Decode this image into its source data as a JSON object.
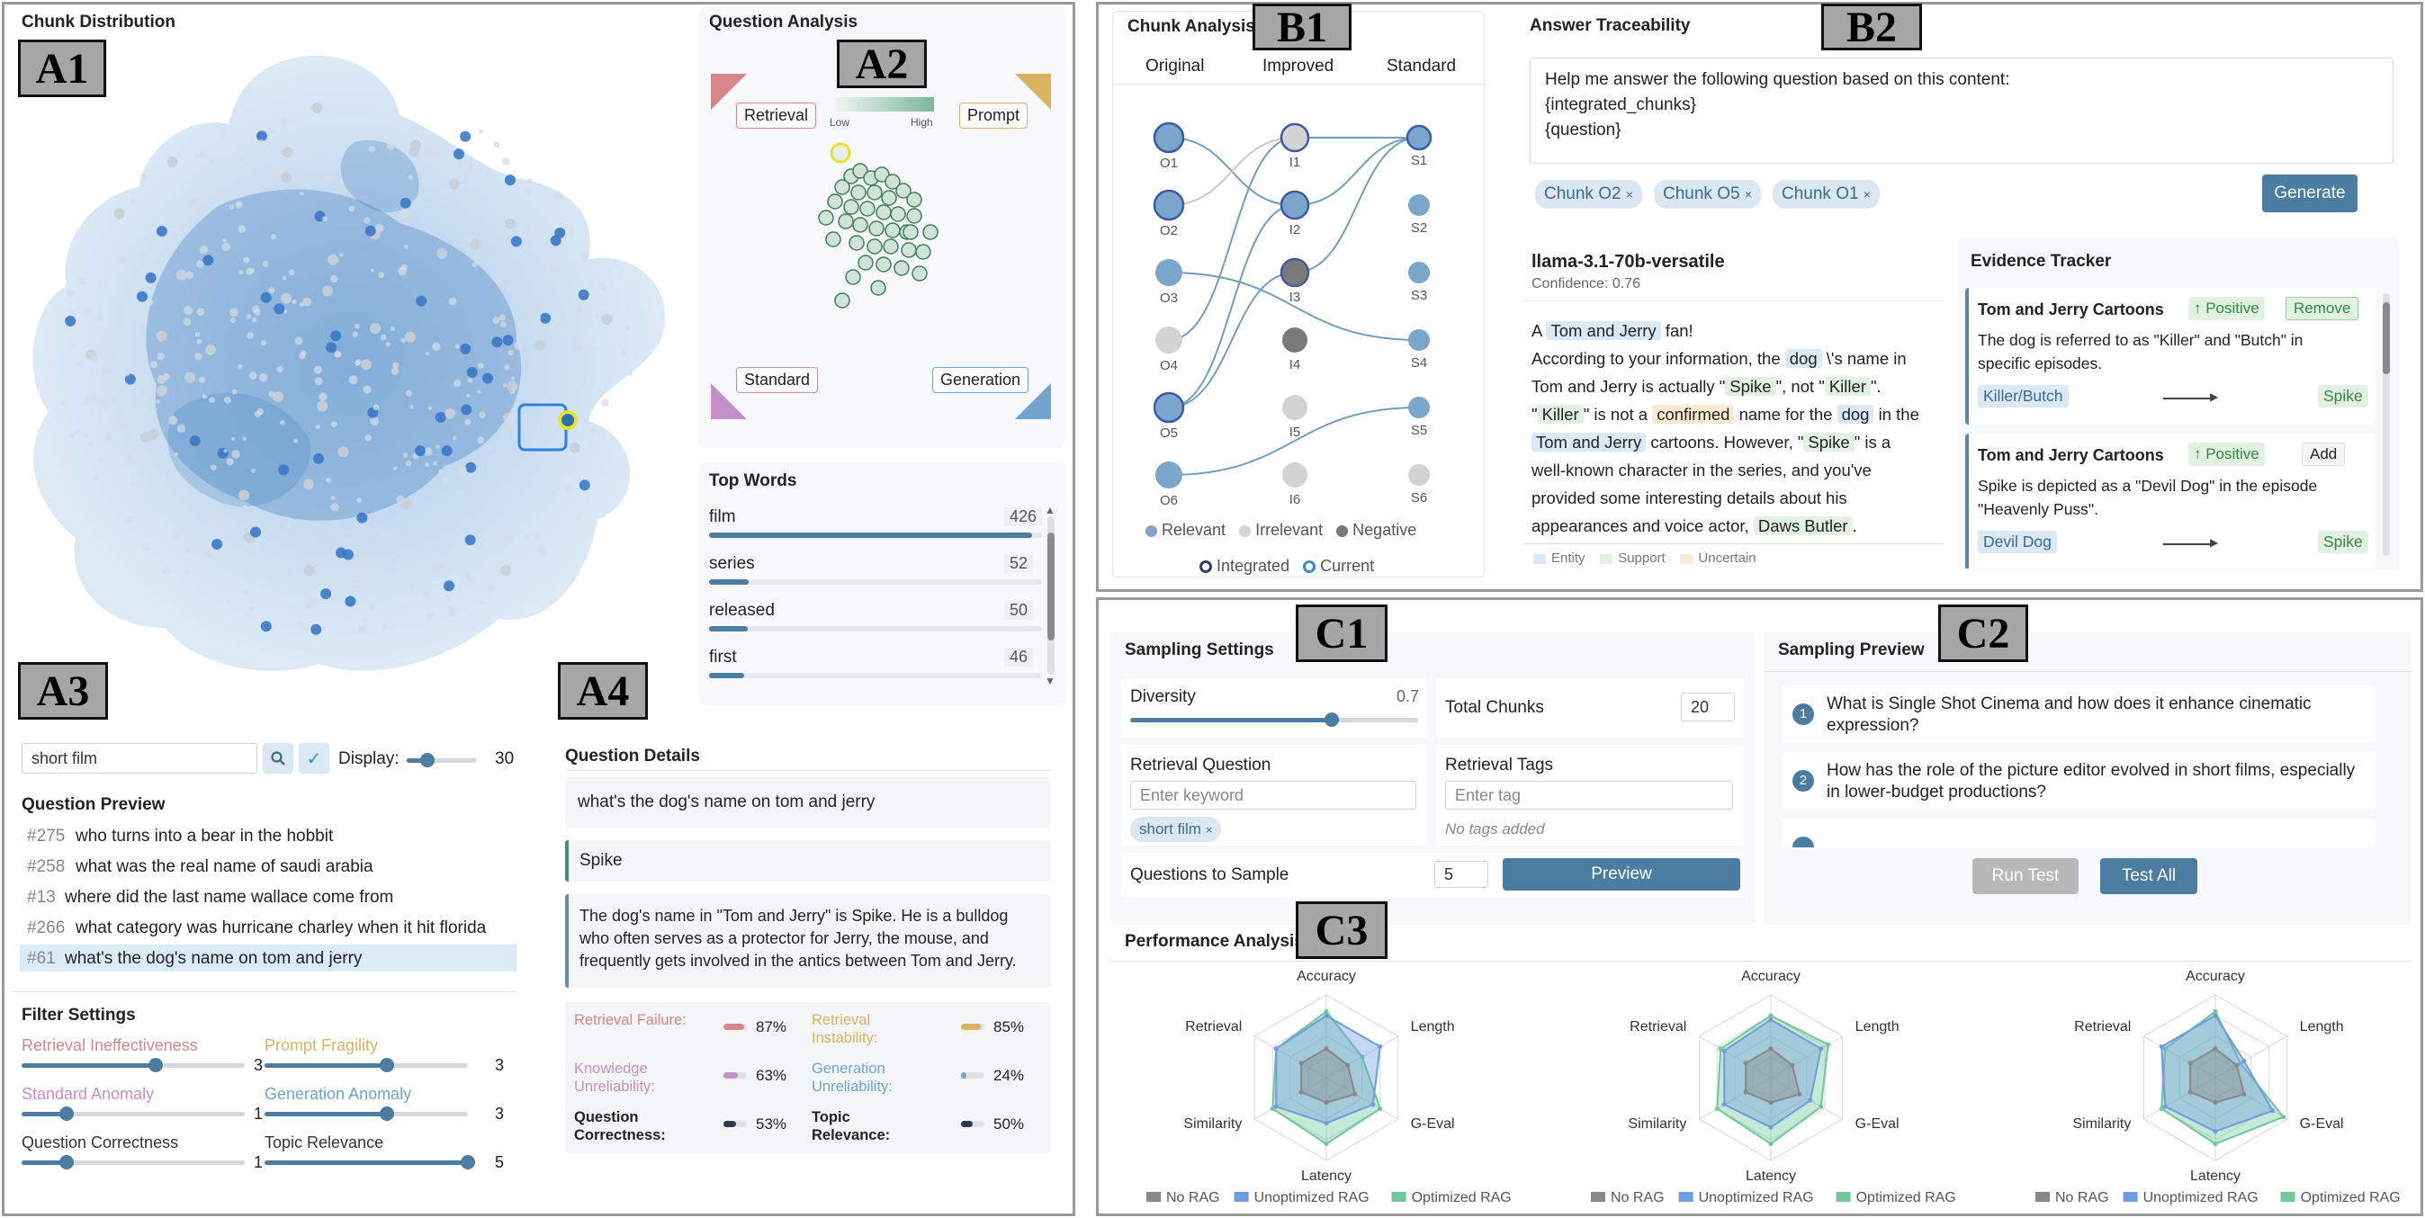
{
  "panels": {
    "chunk_distribution": "Chunk Distribution",
    "question_analysis": "Question Analysis",
    "top_words": "Top Words",
    "question_preview": "Question Preview",
    "filter_settings": "Filter Settings",
    "question_details": "Question Details",
    "chunk_analysis": "Chunk Analysis",
    "answer_traceability": "Answer Traceability",
    "evidence_tracker": "Evidence Tracker",
    "sampling_settings": "Sampling Settings",
    "sampling_preview": "Sampling Preview",
    "performance_analysis": "Performance Analysis"
  },
  "tags": {
    "a1": "A1",
    "a2": "A2",
    "a3": "A3",
    "a4": "A4",
    "b1": "B1",
    "b2": "B2",
    "c1": "C1",
    "c2": "C2",
    "c3": "C3"
  },
  "question_analysis": {
    "retrieval": "Retrieval",
    "prompt": "Prompt",
    "standard": "Standard",
    "generation": "Generation",
    "low": "Low",
    "high": "High"
  },
  "top_words": [
    {
      "word": "film",
      "count": "426",
      "frac": 0.97
    },
    {
      "word": "series",
      "count": "52",
      "frac": 0.12
    },
    {
      "word": "released",
      "count": "50",
      "frac": 0.115
    },
    {
      "word": "first",
      "count": "46",
      "frac": 0.105
    }
  ],
  "search": {
    "value": "short film",
    "display_label": "Display:",
    "display_value": "30",
    "display_frac": 0.3
  },
  "questions": [
    {
      "num": "#275",
      "text": "who turns into a bear in the hobbit"
    },
    {
      "num": "#258",
      "text": "what was the real name of saudi arabia"
    },
    {
      "num": "#13",
      "text": "where did the last name wallace come from"
    },
    {
      "num": "#266",
      "text": "what category was hurricane charley when it hit florida"
    },
    {
      "num": "#61",
      "text": "what's the dog's name on tom and jerry"
    }
  ],
  "filters": [
    {
      "label": "Retrieval Ineffectiveness",
      "value": "3",
      "frac": 0.6,
      "color": "#d9868a"
    },
    {
      "label": "Prompt Fragility",
      "value": "3",
      "frac": 0.6,
      "color": "#d9b35f"
    },
    {
      "label": "Standard Anomaly",
      "value": "1",
      "frac": 0.2,
      "color": "#c58fc8"
    },
    {
      "label": "Generation Anomaly",
      "value": "3",
      "frac": 0.6,
      "color": "#6fa5cf"
    },
    {
      "label": "Question Correctness",
      "value": "1",
      "frac": 0.2,
      "color": "#333333"
    },
    {
      "label": "Topic Relevance",
      "value": "5",
      "frac": 1.0,
      "color": "#333333"
    }
  ],
  "details": {
    "question": "what's the dog's name on tom and jerry",
    "answer": "Spike",
    "context": "The dog's name in \"Tom and Jerry\" is Spike. He is a bulldog who often serves as a protector for Jerry, the mouse, and frequently gets involved in the antics between Tom and Jerry.",
    "metrics": [
      {
        "label": "Retrieval Failure:",
        "value": "87%",
        "frac": 0.87,
        "color": "#d9868a",
        "labelColor": "#d9868a"
      },
      {
        "label": "Retrieval Instability:",
        "value": "85%",
        "frac": 0.85,
        "color": "#d9b35f",
        "labelColor": "#d9b35f"
      },
      {
        "label": "Knowledge Unreliability:",
        "value": "63%",
        "frac": 0.63,
        "color": "#c58fc8",
        "labelColor": "#c58fc8"
      },
      {
        "label": "Generation Unreliability:",
        "value": "24%",
        "frac": 0.24,
        "color": "#6fa5cf",
        "labelColor": "#6fa5cf"
      },
      {
        "label": "Question Correctness:",
        "value": "53%",
        "frac": 0.53,
        "color": "#2b3a4a",
        "labelColor": "#222222"
      },
      {
        "label": "Topic Relevance:",
        "value": "50%",
        "frac": 0.5,
        "color": "#2b3a4a",
        "labelColor": "#222222"
      }
    ]
  },
  "chunk_analysis": {
    "cols": [
      "Original",
      "Improved",
      "Standard"
    ],
    "o": [
      "O1",
      "O2",
      "O3",
      "O4",
      "O5",
      "O6"
    ],
    "i": [
      "I1",
      "I2",
      "I3",
      "I4",
      "I5",
      "I6"
    ],
    "s": [
      "S1",
      "S2",
      "S3",
      "S4",
      "S5",
      "S6"
    ],
    "legend": [
      "Relevant",
      "Irrelevant",
      "Negative",
      "Integrated",
      "Current"
    ]
  },
  "answer": {
    "prompt_lines": [
      "Help me answer the following question based on this content:",
      "{integrated_chunks}",
      "{question}"
    ],
    "chunks": [
      "Chunk O2",
      "Chunk O5",
      "Chunk O1"
    ],
    "generate": "Generate",
    "model": "llama-3.1-70b-versatile",
    "confidence": "Confidence: 0.76",
    "legend": [
      "Entity",
      "Support",
      "Uncertain"
    ]
  },
  "answer_text": {
    "l1a": "A ",
    "l1b": "Tom and Jerry",
    "l1c": " fan!",
    "l2a": "According to your information, the ",
    "l2b": "dog",
    "l2c": " \\'s name in",
    "l3a": "Tom and Jerry is actually \"",
    "l3b": "Spike",
    "l3c": "\", not \"",
    "l3d": "Killer",
    "l3e": "\".",
    "l4a": "\"",
    "l4b": "Killer",
    "l4c": "\" is not a ",
    "l4d": "confirmed",
    "l4e": " name for the ",
    "l4f": "dog",
    "l4g": " in the",
    "l5a": "Tom and Jerry",
    "l5b": " cartoons. However, \"",
    "l5c": "Spike",
    "l5d": "\" is a",
    "l6": "well-known character in the series, and you've",
    "l7": "provided some interesting details about his",
    "l8a": "appearances and voice actor, ",
    "l8b": "Daws Butler",
    "l8c": "."
  },
  "evidence": [
    {
      "title": "Tom and Jerry Cartoons",
      "badge": "↑ Positive",
      "action": "Remove",
      "text1": "The dog is referred to as \"Killer\" and \"Butch\" in",
      "text2": "specific episodes.",
      "from": "Killer/Butch",
      "to": "Spike"
    },
    {
      "title": "Tom and Jerry Cartoons",
      "badge": "↑ Positive",
      "action": "Add",
      "text1": "Spike is depicted as a \"Devil Dog\" in the episode",
      "text2": "\"Heavenly Puss\".",
      "from": "Devil Dog",
      "to": "Spike"
    }
  ],
  "sampling": {
    "diversity_label": "Diversity",
    "diversity_value": "0.7",
    "diversity_frac": 0.7,
    "total_label": "Total Chunks",
    "total_value": "20",
    "rq_label": "Retrieval Question",
    "rq_placeholder": "Enter keyword",
    "rq_chip": "short film",
    "rt_label": "Retrieval Tags",
    "rt_placeholder": "Enter tag",
    "rt_empty": "No tags added",
    "qs_label": "Questions to Sample",
    "qs_value": "5",
    "preview": "Preview"
  },
  "preview": {
    "items": [
      {
        "n": "1",
        "l1": "What is Single Shot Cinema and how does it enhance cinematic",
        "l2": "expression?"
      },
      {
        "n": "2",
        "l1": "How has the role of the picture editor evolved in short films, especially",
        "l2": "in lower-budget productions?"
      }
    ],
    "run": "Run Test",
    "test_all": "Test All"
  },
  "chart_data": [
    {
      "type": "radar",
      "axes": [
        "Accuracy",
        "Length",
        "G-Eval",
        "Latency",
        "Similarity",
        "Retrieval"
      ],
      "series": [
        {
          "name": "No RAG",
          "values": [
            0.35,
            0.3,
            0.4,
            0.3,
            0.35,
            0.35
          ]
        },
        {
          "name": "Unoptimized RAG",
          "values": [
            0.75,
            0.75,
            0.65,
            0.55,
            0.7,
            0.7
          ]
        },
        {
          "name": "Optimized RAG",
          "values": [
            0.8,
            0.5,
            0.75,
            0.8,
            0.75,
            0.7
          ]
        }
      ],
      "range": [
        0,
        1
      ]
    },
    {
      "type": "radar",
      "axes": [
        "Accuracy",
        "Length",
        "G-Eval",
        "Latency",
        "Similarity",
        "Retrieval"
      ],
      "series": [
        {
          "name": "No RAG",
          "values": [
            0.35,
            0.3,
            0.4,
            0.3,
            0.35,
            0.35
          ]
        },
        {
          "name": "Unoptimized RAG",
          "values": [
            0.7,
            0.7,
            0.55,
            0.6,
            0.65,
            0.65
          ]
        },
        {
          "name": "Optimized RAG",
          "values": [
            0.75,
            0.8,
            0.7,
            0.8,
            0.75,
            0.7
          ]
        }
      ],
      "range": [
        0,
        1
      ]
    },
    {
      "type": "radar",
      "axes": [
        "Accuracy",
        "Length",
        "G-Eval",
        "Latency",
        "Similarity",
        "Retrieval"
      ],
      "series": [
        {
          "name": "No RAG",
          "values": [
            0.35,
            0.3,
            0.4,
            0.3,
            0.35,
            0.35
          ]
        },
        {
          "name": "Unoptimized RAG",
          "values": [
            0.75,
            0.4,
            0.8,
            0.65,
            0.7,
            0.75
          ]
        },
        {
          "name": "Optimized RAG",
          "values": [
            0.8,
            0.35,
            0.95,
            0.8,
            0.75,
            0.7
          ]
        }
      ],
      "range": [
        0,
        1
      ]
    }
  ],
  "series_colors": {
    "No RAG": "#888888",
    "Unoptimized RAG": "#6f9be0",
    "Optimized RAG": "#6fc79a"
  }
}
